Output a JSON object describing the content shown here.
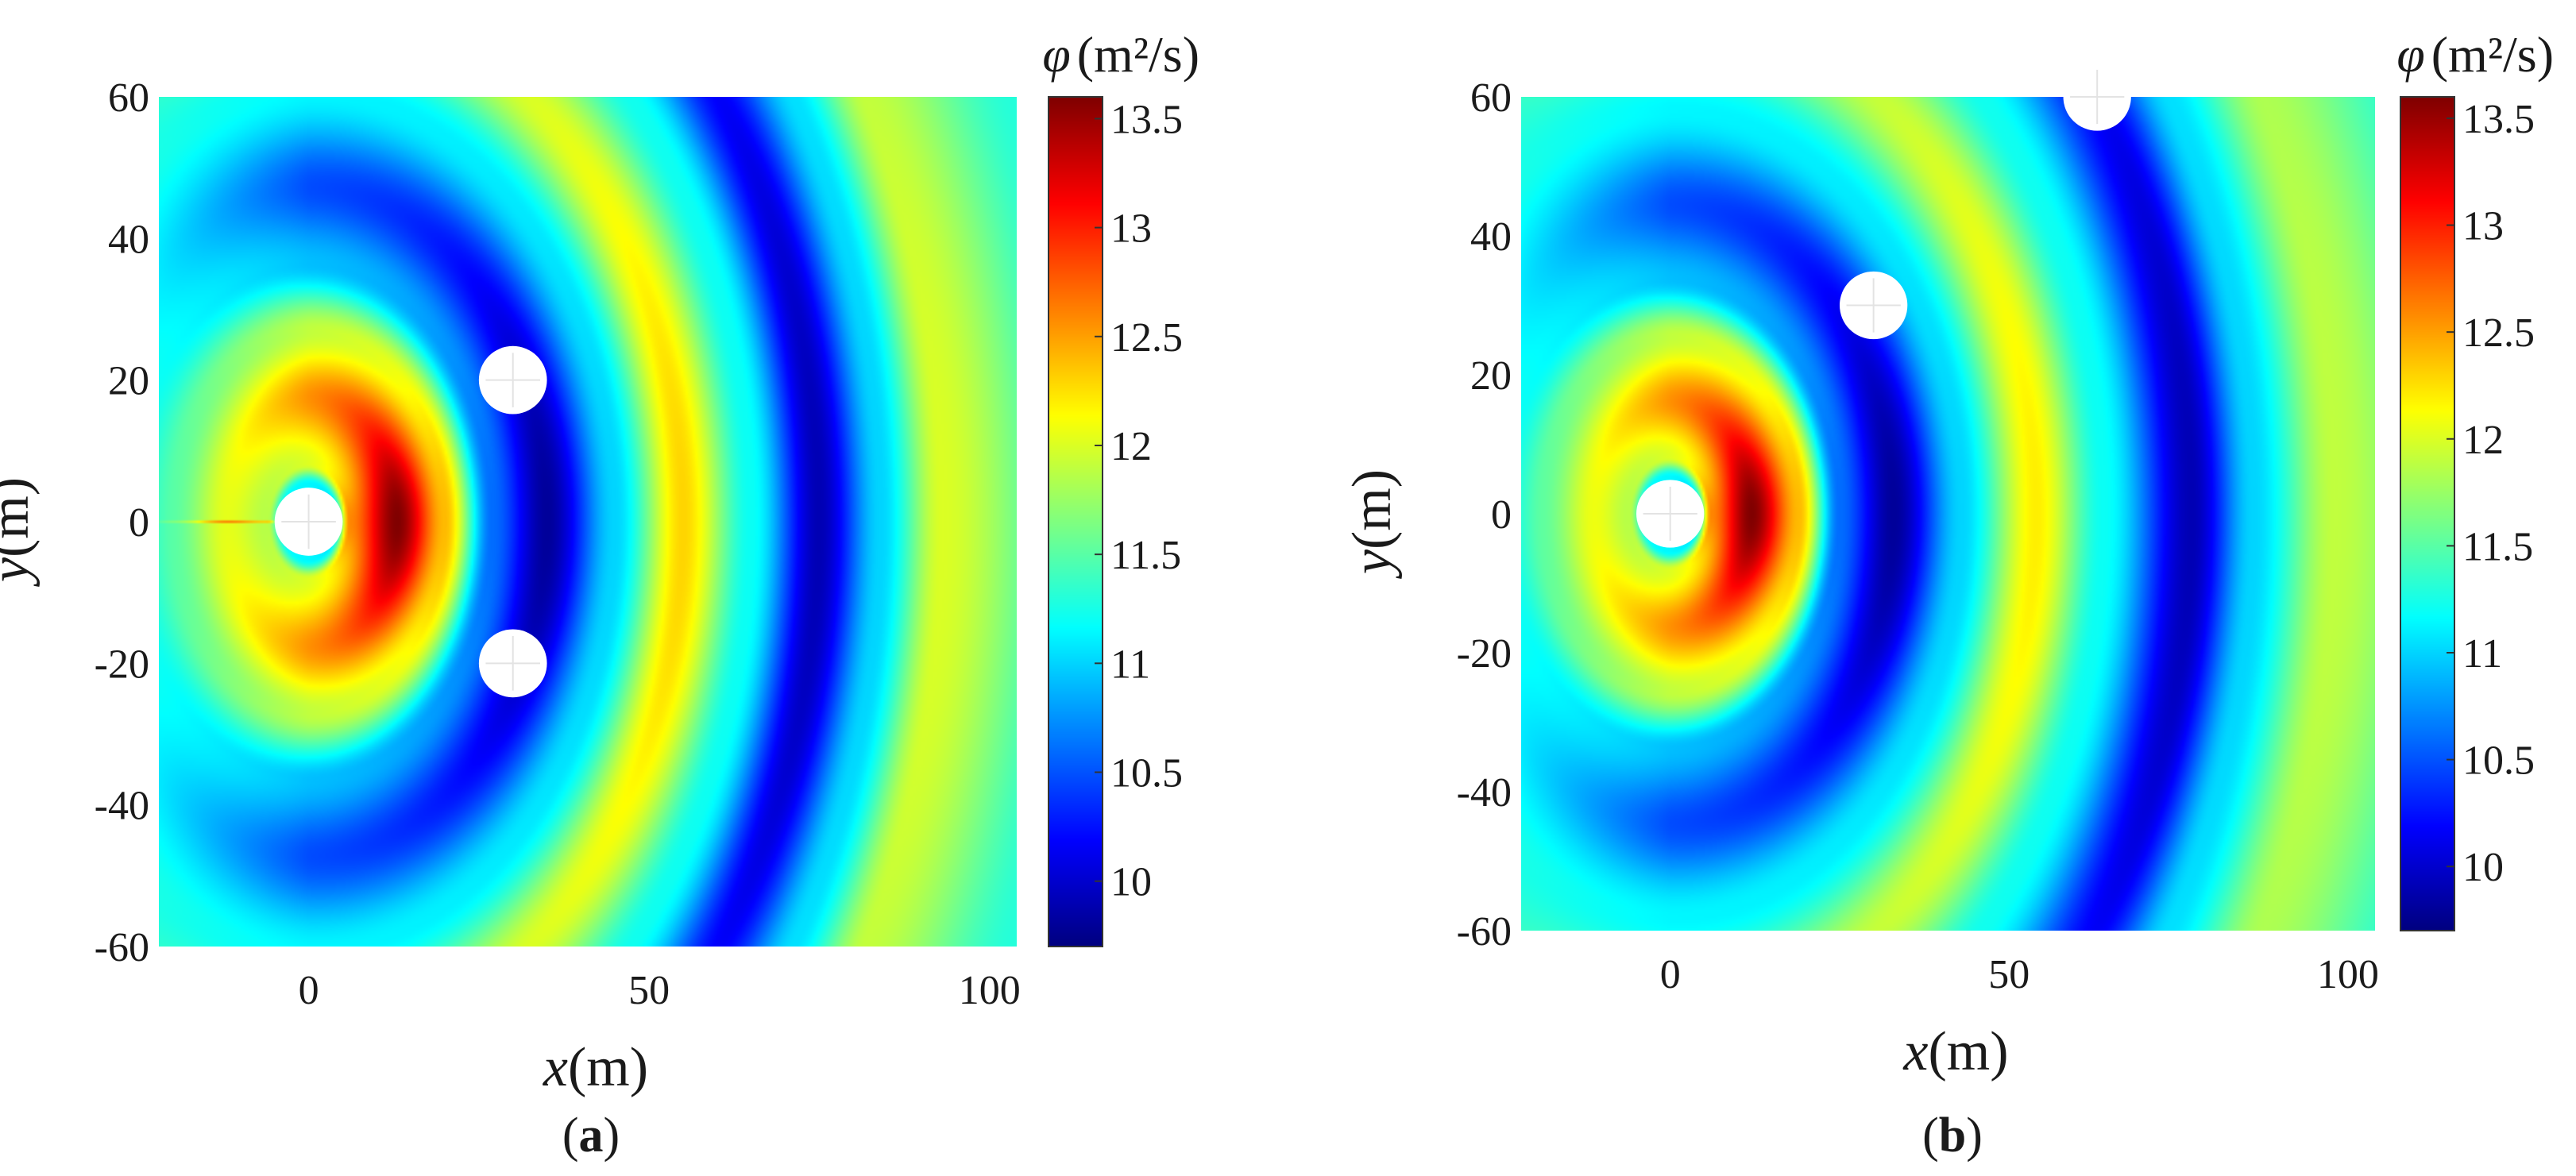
{
  "chart_data": [
    {
      "type": "heatmap",
      "panel_label": "a",
      "xlabel_var": "x",
      "xlabel_unit": "(m)",
      "ylabel_var": "y",
      "ylabel_unit": "(m)",
      "xlim": [
        -22,
        104
      ],
      "ylim": [
        -60,
        60
      ],
      "xticks": [
        0,
        50,
        100
      ],
      "yticks": [
        60,
        40,
        20,
        0,
        -20,
        -40,
        -60
      ],
      "colorbar": {
        "title_var": "φ",
        "title_unit": "(m²/s)",
        "range": [
          9.7,
          13.6
        ],
        "ticks": [
          13.5,
          13,
          12.5,
          12,
          11.5,
          11,
          10.5,
          10
        ],
        "colormap": "jet"
      },
      "cylinders": [
        {
          "x": 0,
          "y": 0,
          "r": 5
        },
        {
          "x": 30,
          "y": 20,
          "r": 5
        },
        {
          "x": 30,
          "y": -20,
          "r": 5
        }
      ],
      "field": {
        "source_x": 0,
        "source_y": 0,
        "peak": {
          "x": 13,
          "y": 0,
          "value": 13.6
        },
        "troughs_r": [
          35,
          75
        ],
        "crests_r": [
          55,
          93
        ],
        "trough_value": 9.8,
        "crest_value": 12.3,
        "far_value": 11.3
      }
    },
    {
      "type": "heatmap",
      "panel_label": "b",
      "xlabel_var": "x",
      "xlabel_unit": "(m)",
      "ylabel_var": "y",
      "ylabel_unit": "(m)",
      "xlim": [
        -22,
        104
      ],
      "ylim": [
        -60,
        60
      ],
      "xticks": [
        0,
        50,
        100
      ],
      "yticks": [
        60,
        40,
        20,
        0,
        -20,
        -40,
        -60
      ],
      "colorbar": {
        "title_var": "φ",
        "title_unit": "(m²/s)",
        "range": [
          9.7,
          13.6
        ],
        "ticks": [
          13.5,
          13,
          12.5,
          12,
          11.5,
          11,
          10.5,
          10
        ],
        "colormap": "jet"
      },
      "cylinders": [
        {
          "x": 0,
          "y": 0,
          "r": 5
        },
        {
          "x": 30,
          "y": 30,
          "r": 5
        },
        {
          "x": 63,
          "y": 60,
          "r": 5
        }
      ],
      "field": {
        "source_x": 0,
        "source_y": 0,
        "peak": {
          "x": 12,
          "y": 0,
          "value": 13.6
        },
        "troughs_r": [
          33,
          77
        ],
        "crests_r": [
          54,
          98
        ],
        "trough_value": 9.8,
        "crest_value": 12.2,
        "far_value": 11.3
      }
    }
  ]
}
